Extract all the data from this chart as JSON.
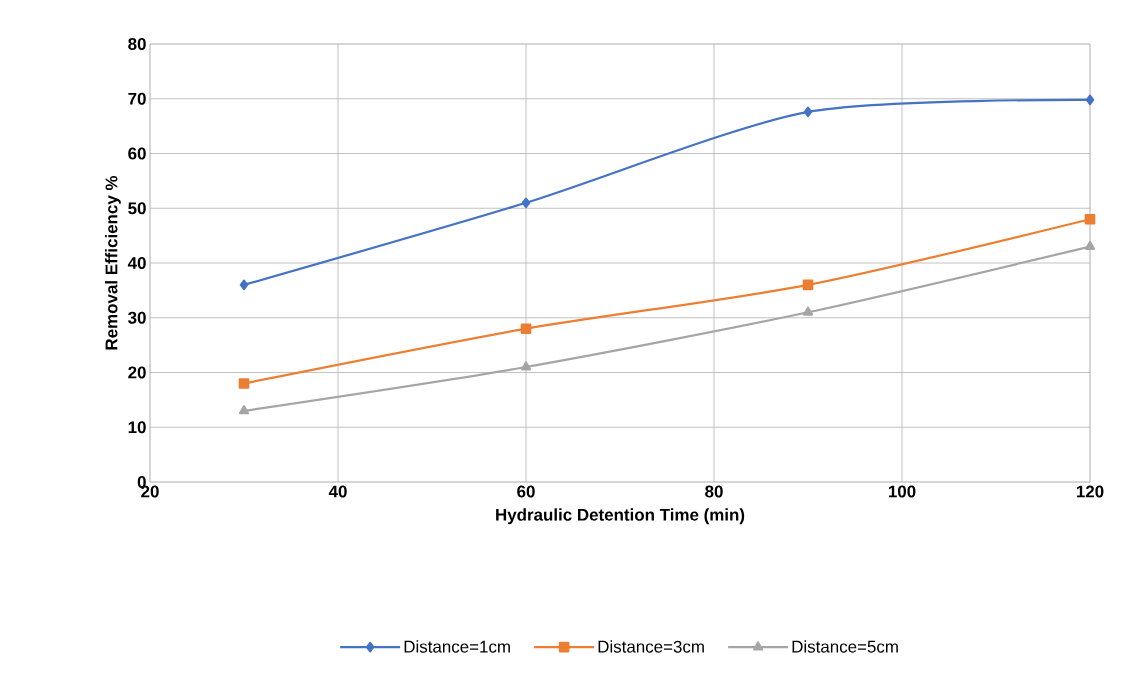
{
  "chart_data": {
    "type": "line",
    "xlabel": "Hydraulic Detention Time (min)",
    "ylabel": "Removal Efficiency %",
    "x": [
      30,
      60,
      90,
      120
    ],
    "series": [
      {
        "name": "Distance=1cm",
        "color": "#4472c4",
        "marker": "diamond",
        "values": [
          36,
          51,
          67.6,
          69.8
        ]
      },
      {
        "name": "Distance=3cm",
        "color": "#ed7d31",
        "marker": "square",
        "values": [
          18,
          28,
          36,
          48
        ]
      },
      {
        "name": "Distance=5cm",
        "color": "#a5a5a5",
        "marker": "triangle",
        "values": [
          13,
          21,
          31,
          43
        ]
      }
    ],
    "xlim": [
      20,
      120
    ],
    "xticks": [
      20,
      40,
      60,
      80,
      100,
      120
    ],
    "ylim": [
      0,
      80
    ],
    "yticks": [
      0,
      10,
      20,
      30,
      40,
      50,
      60,
      70,
      80
    ],
    "grid": true,
    "legend": "bottom"
  }
}
